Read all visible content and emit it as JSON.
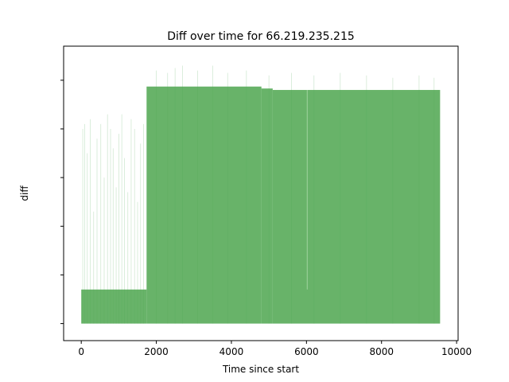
{
  "chart_data": {
    "type": "area",
    "title": "Diff over time for 66.219.235.215",
    "xlabel": "Time since start",
    "ylabel": "diff",
    "xlim": [
      -470,
      10040
    ],
    "ylim": [
      -0.35,
      5.7
    ],
    "xticks": [
      0,
      2000,
      4000,
      6000,
      8000,
      10000
    ],
    "yticks": [
      0,
      1,
      2,
      3,
      4,
      5
    ],
    "ytick_labels_visible": false,
    "grid": false,
    "series_color": "#4da64f",
    "baseline": 0,
    "segments": [
      {
        "x": [
          0,
          1740
        ],
        "value": 0.7
      },
      {
        "x": [
          1740,
          4800
        ],
        "value": 4.87
      },
      {
        "x": [
          4800,
          5100
        ],
        "value": 4.83
      },
      {
        "x": [
          5100,
          9560
        ],
        "value": 4.8
      }
    ],
    "spikes": [
      {
        "x": 40,
        "value": 4.0
      },
      {
        "x": 90,
        "value": 4.1
      },
      {
        "x": 160,
        "value": 3.5
      },
      {
        "x": 240,
        "value": 4.2
      },
      {
        "x": 330,
        "value": 2.3
      },
      {
        "x": 420,
        "value": 3.8
      },
      {
        "x": 520,
        "value": 4.1
      },
      {
        "x": 610,
        "value": 3.0
      },
      {
        "x": 700,
        "value": 4.3
      },
      {
        "x": 780,
        "value": 4.0
      },
      {
        "x": 850,
        "value": 3.6
      },
      {
        "x": 930,
        "value": 2.8
      },
      {
        "x": 1000,
        "value": 3.9
      },
      {
        "x": 1080,
        "value": 4.3
      },
      {
        "x": 1150,
        "value": 3.4
      },
      {
        "x": 1240,
        "value": 2.7
      },
      {
        "x": 1330,
        "value": 4.2
      },
      {
        "x": 1420,
        "value": 4.0
      },
      {
        "x": 1500,
        "value": 2.5
      },
      {
        "x": 1580,
        "value": 3.7
      },
      {
        "x": 1660,
        "value": 4.1
      },
      {
        "x": 2000,
        "value": 5.2
      },
      {
        "x": 2300,
        "value": 5.15
      },
      {
        "x": 2500,
        "value": 5.25
      },
      {
        "x": 2700,
        "value": 5.3
      },
      {
        "x": 3100,
        "value": 5.2
      },
      {
        "x": 3500,
        "value": 5.3
      },
      {
        "x": 3900,
        "value": 5.15
      },
      {
        "x": 4400,
        "value": 5.2
      },
      {
        "x": 5000,
        "value": 5.1
      },
      {
        "x": 5600,
        "value": 5.15
      },
      {
        "x": 6200,
        "value": 5.1
      },
      {
        "x": 6900,
        "value": 5.15
      },
      {
        "x": 7600,
        "value": 5.1
      },
      {
        "x": 8300,
        "value": 5.05
      },
      {
        "x": 9000,
        "value": 5.1
      },
      {
        "x": 9400,
        "value": 5.05
      }
    ],
    "notch": {
      "x": 6020,
      "value": 0.7
    }
  }
}
